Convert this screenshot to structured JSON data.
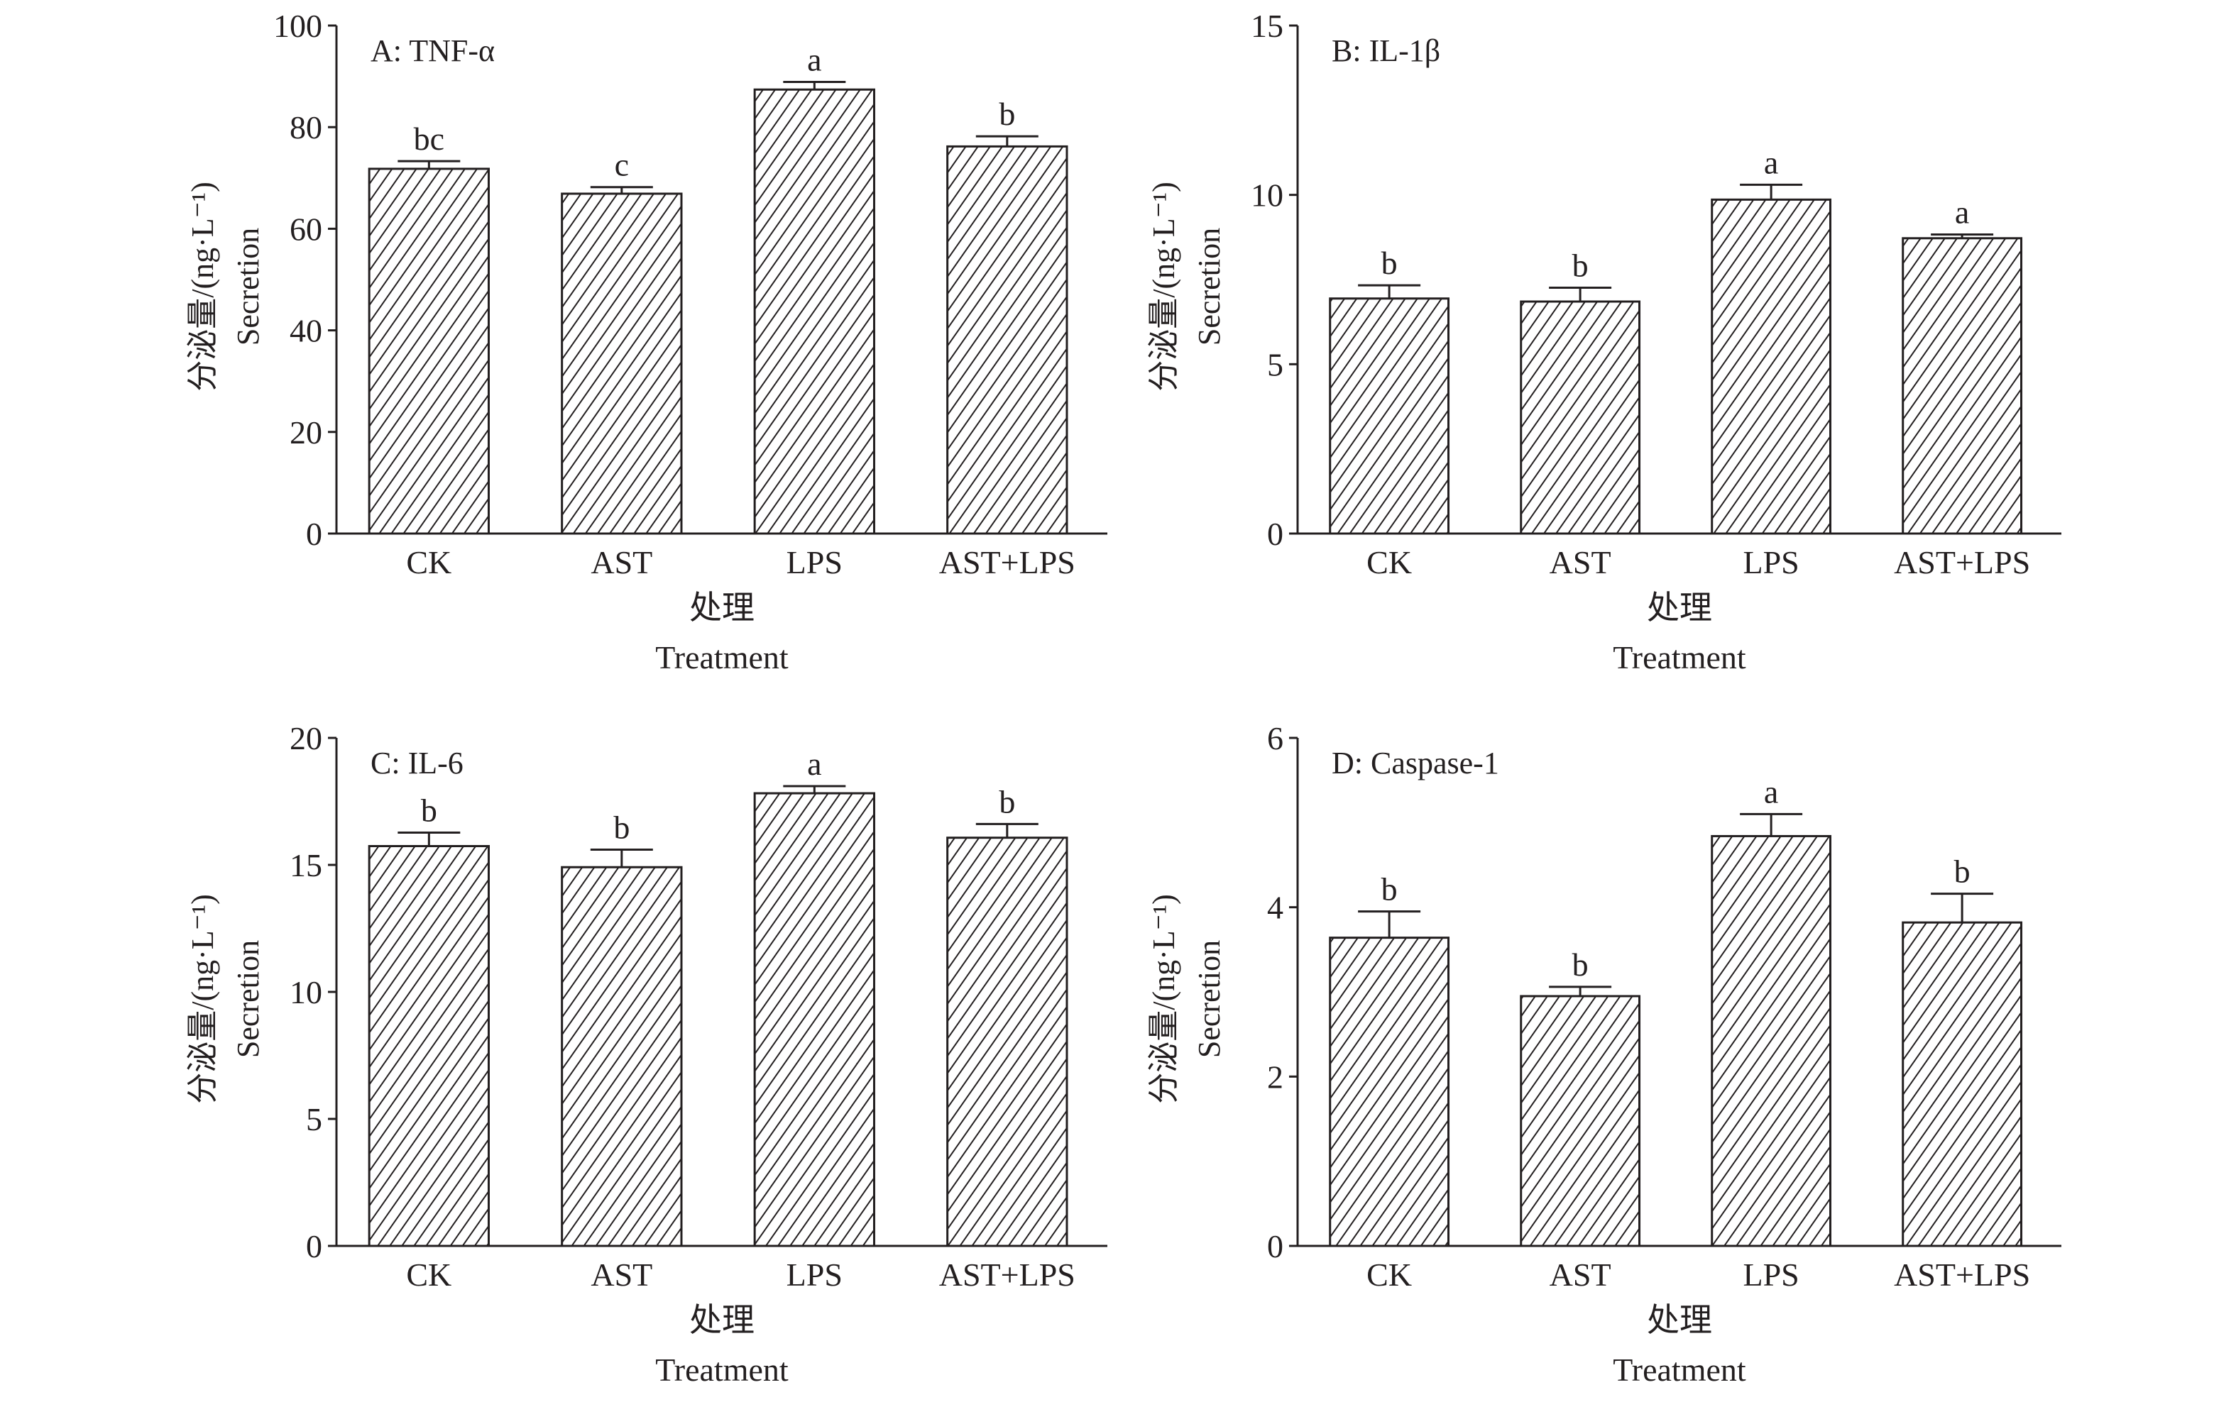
{
  "chart_data": [
    {
      "type": "bar",
      "panel": "A",
      "title": "A: TNF-α",
      "categories": [
        "CK",
        "AST",
        "LPS",
        "AST+LPS"
      ],
      "values": [
        71.8,
        66.9,
        87.4,
        76.2
      ],
      "error_upper": [
        73.3,
        68.2,
        88.9,
        78.2
      ],
      "significance_letters": [
        "bc",
        "c",
        "a",
        "b"
      ],
      "ylim": [
        0,
        100
      ],
      "yticks": [
        0,
        20,
        40,
        60,
        80,
        100
      ],
      "ylabel_cn": "分泌量/(ng·L⁻¹)",
      "ylabel_en": "Secretion",
      "xlabel_cn": "处理",
      "xlabel_en": "Treatment"
    },
    {
      "type": "bar",
      "panel": "B",
      "title": "B: IL-1β",
      "categories": [
        "CK",
        "AST",
        "LPS",
        "AST+LPS"
      ],
      "values": [
        6.94,
        6.85,
        9.86,
        8.72
      ],
      "error_upper": [
        7.33,
        7.26,
        10.3,
        8.83
      ],
      "significance_letters": [
        "b",
        "b",
        "a",
        "a"
      ],
      "ylim": [
        0,
        15
      ],
      "yticks": [
        0,
        5,
        10,
        15
      ],
      "ylabel_cn": "分泌量/(ng·L⁻¹)",
      "ylabel_en": "Secretion",
      "xlabel_cn": "处理",
      "xlabel_en": "Treatment"
    },
    {
      "type": "bar",
      "panel": "C",
      "title": "C: IL-6",
      "categories": [
        "CK",
        "AST",
        "LPS",
        "AST+LPS"
      ],
      "values": [
        15.74,
        14.91,
        17.82,
        16.07
      ],
      "error_upper": [
        16.27,
        15.6,
        18.1,
        16.61
      ],
      "significance_letters": [
        "b",
        "b",
        "a",
        "b"
      ],
      "ylim": [
        0,
        20
      ],
      "yticks": [
        0,
        5,
        10,
        15,
        20
      ],
      "ylabel_cn": "分泌量/(ng·L⁻¹)",
      "ylabel_en": "Secretion",
      "xlabel_cn": "处理",
      "xlabel_en": "Treatment"
    },
    {
      "type": "bar",
      "panel": "D",
      "title": "D: Caspase-1",
      "categories": [
        "CK",
        "AST",
        "LPS",
        "AST+LPS"
      ],
      "values": [
        3.64,
        2.95,
        4.84,
        3.82
      ],
      "error_upper": [
        3.95,
        3.06,
        5.1,
        4.16
      ],
      "significance_letters": [
        "b",
        "b",
        "a",
        "b"
      ],
      "ylim": [
        0,
        6
      ],
      "yticks": [
        0,
        2,
        4,
        6
      ],
      "ylabel_cn": "分泌量/(ng·L⁻¹)",
      "ylabel_en": "Secretion",
      "xlabel_cn": "处理",
      "xlabel_en": "Treatment"
    }
  ]
}
